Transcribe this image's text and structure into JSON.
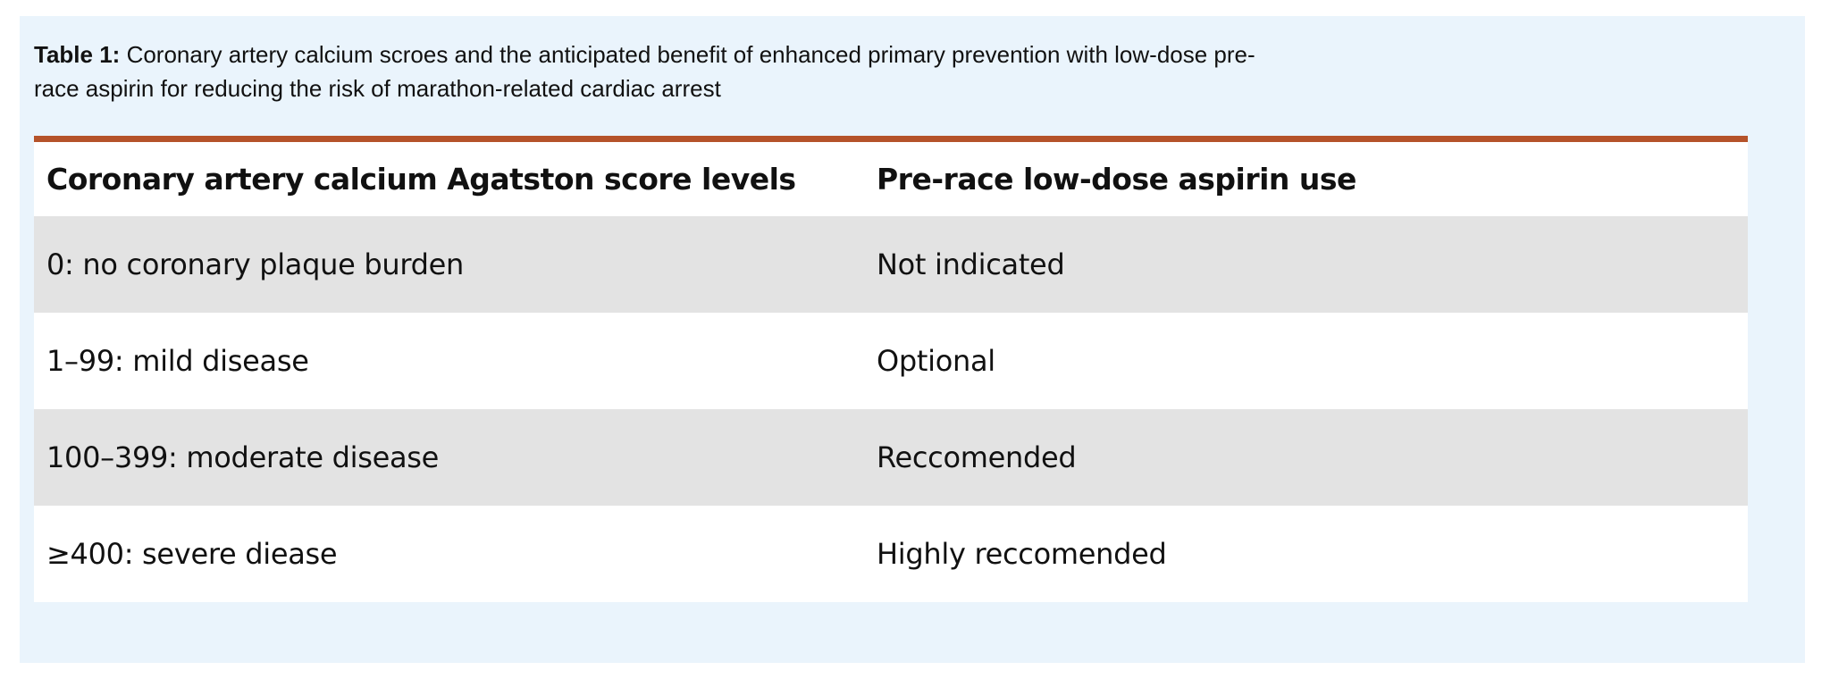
{
  "caption": {
    "label": "Table 1:",
    "text": "Coronary artery calcium scroes and the anticipated benefit of enhanced primary prevention with low-dose pre-race aspirin for reducing the risk of marathon-related cardiac arrest"
  },
  "table": {
    "headers": [
      "Coronary artery calcium Agatston score levels",
      "Pre-race low-dose aspirin use"
    ],
    "rows": [
      [
        "0: no coronary plaque burden",
        "Not indicated"
      ],
      [
        "1–99: mild disease",
        "Optional"
      ],
      [
        "100–399: moderate disease",
        "Reccomended"
      ],
      [
        "≥400: severe diease",
        "Highly reccomended"
      ]
    ]
  },
  "colors": {
    "background": "#eaf4fc",
    "accent_rule": "#b5532a",
    "shaded_row": "#e3e3e3"
  }
}
